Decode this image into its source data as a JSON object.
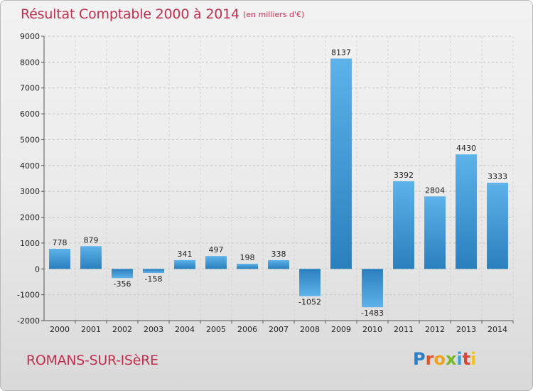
{
  "header": {
    "title": "Résultat Comptable 2000 à 2014",
    "unit_note": "(en milliers d'€)"
  },
  "footer": {
    "city": "ROMANS-SUR-ISèRE",
    "brand": "Proxiti"
  },
  "colors": {
    "accent": "#c0304f",
    "bar_light": "#5aaee8",
    "bar_dark": "#2a7fbd"
  },
  "chart_data": {
    "type": "bar",
    "title": "Résultat Comptable 2000 à 2014",
    "xlabel": "",
    "ylabel": "",
    "categories": [
      "2000",
      "2001",
      "2002",
      "2003",
      "2004",
      "2005",
      "2006",
      "2007",
      "2008",
      "2009",
      "2010",
      "2011",
      "2012",
      "2013",
      "2014"
    ],
    "values": [
      778,
      879,
      -356,
      -158,
      341,
      497,
      198,
      338,
      -1052,
      8137,
      -1483,
      3392,
      2804,
      4430,
      3333
    ],
    "value_labels": [
      "778",
      "879",
      "-356",
      "-158",
      "341",
      "497",
      "198",
      "338",
      "-1052",
      "8137",
      "-1483",
      "3392",
      "2804",
      "4430",
      "3333"
    ],
    "ylim": [
      -2000,
      9000
    ],
    "yticks": [
      -2000,
      -1000,
      0,
      1000,
      2000,
      3000,
      4000,
      5000,
      6000,
      7000,
      8000,
      9000
    ],
    "grid": "horizontal dashed",
    "legend": "none"
  }
}
